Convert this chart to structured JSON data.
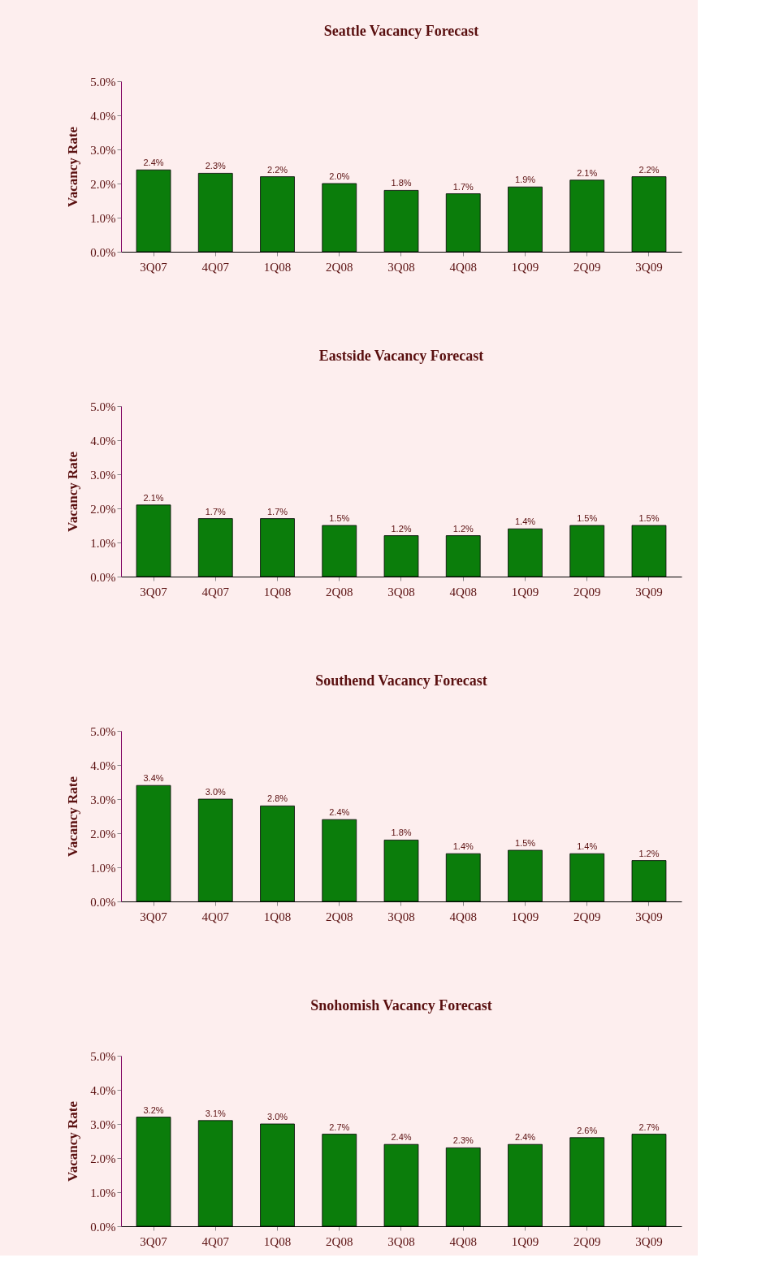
{
  "chart_data": [
    {
      "type": "bar",
      "title": "Seattle Vacancy Forecast",
      "ylabel": "Vacancy Rate",
      "categories": [
        "3Q07",
        "4Q07",
        "1Q08",
        "2Q08",
        "3Q08",
        "4Q08",
        "1Q09",
        "2Q09",
        "3Q09"
      ],
      "values": [
        2.4,
        2.3,
        2.2,
        2.0,
        1.8,
        1.7,
        1.9,
        2.1,
        2.2
      ],
      "value_labels": [
        "2.4%",
        "2.3%",
        "2.2%",
        "2.0%",
        "1.8%",
        "1.7%",
        "1.9%",
        "2.1%",
        "2.2%"
      ],
      "color": "#0b7d0b",
      "ylim": [
        0,
        5
      ],
      "yticks": [
        {
          "value": 0,
          "label": "0.0%"
        },
        {
          "value": 1,
          "label": "1.0%"
        },
        {
          "value": 2,
          "label": "2.0%"
        },
        {
          "value": 3,
          "label": "3.0%"
        },
        {
          "value": 4,
          "label": "4.0%"
        },
        {
          "value": 5,
          "label": "5.0%"
        }
      ],
      "grid": false
    },
    {
      "type": "bar",
      "title": "Eastside Vacancy Forecast",
      "ylabel": "Vacancy Rate",
      "categories": [
        "3Q07",
        "4Q07",
        "1Q08",
        "2Q08",
        "3Q08",
        "4Q08",
        "1Q09",
        "2Q09",
        "3Q09"
      ],
      "values": [
        2.1,
        1.7,
        1.7,
        1.5,
        1.2,
        1.2,
        1.4,
        1.5,
        1.5
      ],
      "value_labels": [
        "2.1%",
        "1.7%",
        "1.7%",
        "1.5%",
        "1.2%",
        "1.2%",
        "1.4%",
        "1.5%",
        "1.5%"
      ],
      "color": "#0b7d0b",
      "ylim": [
        0,
        5
      ],
      "yticks": [
        {
          "value": 0,
          "label": "0.0%"
        },
        {
          "value": 1,
          "label": "1.0%"
        },
        {
          "value": 2,
          "label": "2.0%"
        },
        {
          "value": 3,
          "label": "3.0%"
        },
        {
          "value": 4,
          "label": "4.0%"
        },
        {
          "value": 5,
          "label": "5.0%"
        }
      ],
      "grid": false
    },
    {
      "type": "bar",
      "title": "Southend Vacancy Forecast",
      "ylabel": "Vacancy Rate",
      "categories": [
        "3Q07",
        "4Q07",
        "1Q08",
        "2Q08",
        "3Q08",
        "4Q08",
        "1Q09",
        "2Q09",
        "3Q09"
      ],
      "values": [
        3.4,
        3.0,
        2.8,
        2.4,
        1.8,
        1.4,
        1.5,
        1.4,
        1.2
      ],
      "value_labels": [
        "3.4%",
        "3.0%",
        "2.8%",
        "2.4%",
        "1.8%",
        "1.4%",
        "1.5%",
        "1.4%",
        "1.2%"
      ],
      "color": "#0b7d0b",
      "ylim": [
        0,
        5
      ],
      "yticks": [
        {
          "value": 0,
          "label": "0.0%"
        },
        {
          "value": 1,
          "label": "1.0%"
        },
        {
          "value": 2,
          "label": "2.0%"
        },
        {
          "value": 3,
          "label": "3.0%"
        },
        {
          "value": 4,
          "label": "4.0%"
        },
        {
          "value": 5,
          "label": "5.0%"
        }
      ],
      "grid": false
    },
    {
      "type": "bar",
      "title": "Snohomish Vacancy Forecast",
      "ylabel": "Vacancy Rate",
      "categories": [
        "3Q07",
        "4Q07",
        "1Q08",
        "2Q08",
        "3Q08",
        "4Q08",
        "1Q09",
        "2Q09",
        "3Q09"
      ],
      "values": [
        3.2,
        3.1,
        3.0,
        2.7,
        2.4,
        2.3,
        2.4,
        2.6,
        2.7
      ],
      "value_labels": [
        "3.2%",
        "3.1%",
        "3.0%",
        "2.7%",
        "2.4%",
        "2.3%",
        "2.4%",
        "2.6%",
        "2.7%"
      ],
      "color": "#0b7d0b",
      "ylim": [
        0,
        5
      ],
      "yticks": [
        {
          "value": 0,
          "label": "0.0%"
        },
        {
          "value": 1,
          "label": "1.0%"
        },
        {
          "value": 2,
          "label": "2.0%"
        },
        {
          "value": 3,
          "label": "3.0%"
        },
        {
          "value": 4,
          "label": "4.0%"
        },
        {
          "value": 5,
          "label": "5.0%"
        }
      ],
      "grid": false
    }
  ]
}
